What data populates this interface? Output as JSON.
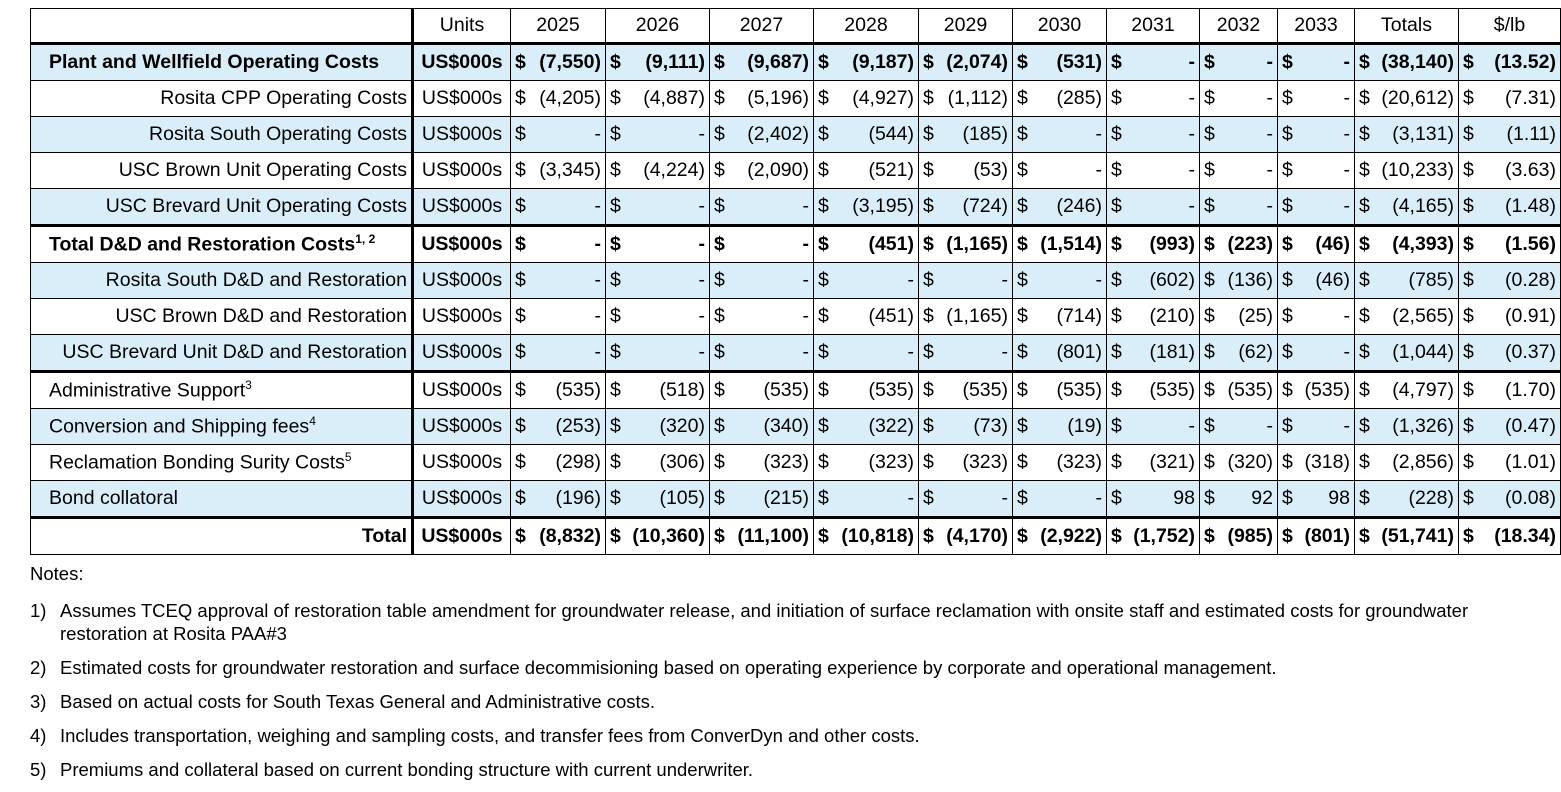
{
  "header": [
    "Units",
    "2025",
    "2026",
    "2027",
    "2028",
    "2029",
    "2030",
    "2031",
    "2032",
    "2033",
    "Totals",
    "$/lb"
  ],
  "rows": [
    {
      "label": "Plant and Wellfield Operating Costs",
      "sup": "",
      "units": "US$000s",
      "align": "left",
      "style": "bold blue thick-top",
      "values": [
        "(7,550)",
        "(9,111)",
        "(9,687)",
        "(9,187)",
        "(2,074)",
        "(531)",
        "-",
        "-",
        "-",
        "(38,140)",
        "(13.52)"
      ]
    },
    {
      "label": "Rosita CPP Operating Costs",
      "sup": "",
      "units": "US$000s",
      "align": "right",
      "style": "",
      "values": [
        "(4,205)",
        "(4,887)",
        "(5,196)",
        "(4,927)",
        "(1,112)",
        "(285)",
        "-",
        "-",
        "-",
        "(20,612)",
        "(7.31)"
      ]
    },
    {
      "label": "Rosita South Operating Costs",
      "sup": "",
      "units": "US$000s",
      "align": "right",
      "style": "blue",
      "values": [
        "-",
        "-",
        "(2,402)",
        "(544)",
        "(185)",
        "-",
        "-",
        "-",
        "-",
        "(3,131)",
        "(1.11)"
      ]
    },
    {
      "label": "USC Brown Unit Operating Costs",
      "sup": "",
      "units": "US$000s",
      "align": "right",
      "style": "",
      "values": [
        "(3,345)",
        "(4,224)",
        "(2,090)",
        "(521)",
        "(53)",
        "-",
        "-",
        "-",
        "-",
        "(10,233)",
        "(3.63)"
      ]
    },
    {
      "label": "USC Brevard Unit Operating Costs",
      "sup": "",
      "units": "US$000s",
      "align": "right",
      "style": "blue",
      "values": [
        "-",
        "-",
        "-",
        "(3,195)",
        "(724)",
        "(246)",
        "-",
        "-",
        "-",
        "(4,165)",
        "(1.48)"
      ]
    },
    {
      "label": "Total D&D and Restoration Costs",
      "sup": "1, 2",
      "units": "US$000s",
      "align": "left",
      "style": "bold thick-top dotted",
      "values": [
        "-",
        "-",
        "-",
        "(451)",
        "(1,165)",
        "(1,514)",
        "(993)",
        "(223)",
        "(46)",
        "(4,393)",
        "(1.56)"
      ]
    },
    {
      "label": "Rosita South D&D and Restoration",
      "sup": "",
      "units": "US$000s",
      "align": "right",
      "style": "blue",
      "values": [
        "-",
        "-",
        "-",
        "-",
        "-",
        "-",
        "(602)",
        "(136)",
        "(46)",
        "(785)",
        "(0.28)"
      ]
    },
    {
      "label": "USC Brown D&D and Restoration",
      "sup": "",
      "units": "US$000s",
      "align": "right",
      "style": "",
      "values": [
        "-",
        "-",
        "-",
        "(451)",
        "(1,165)",
        "(714)",
        "(210)",
        "(25)",
        "-",
        "(2,565)",
        "(0.91)"
      ]
    },
    {
      "label": "USC Brevard Unit D&D and Restoration",
      "sup": "",
      "units": "US$000s",
      "align": "right",
      "style": "blue",
      "values": [
        "-",
        "-",
        "-",
        "-",
        "-",
        "(801)",
        "(181)",
        "(62)",
        "-",
        "(1,044)",
        "(0.37)"
      ]
    },
    {
      "label": "Administrative Support",
      "sup": "3",
      "units": "US$000s",
      "align": "left",
      "style": "thick-top",
      "values": [
        "(535)",
        "(518)",
        "(535)",
        "(535)",
        "(535)",
        "(535)",
        "(535)",
        "(535)",
        "(535)",
        "(4,797)",
        "(1.70)"
      ]
    },
    {
      "label": "Conversion and Shipping fees",
      "sup": "4",
      "units": "US$000s",
      "align": "left",
      "style": "blue",
      "values": [
        "(253)",
        "(320)",
        "(340)",
        "(322)",
        "(73)",
        "(19)",
        "-",
        "-",
        "-",
        "(1,326)",
        "(0.47)"
      ]
    },
    {
      "label": "Reclamation Bonding Surity Costs",
      "sup": "5",
      "units": "US$000s",
      "align": "left",
      "style": "",
      "values": [
        "(298)",
        "(306)",
        "(323)",
        "(323)",
        "(323)",
        "(323)",
        "(321)",
        "(320)",
        "(318)",
        "(2,856)",
        "(1.01)"
      ]
    },
    {
      "label": "Bond collatoral",
      "sup": "",
      "units": "US$000s",
      "align": "left",
      "style": "blue",
      "values": [
        "(196)",
        "(105)",
        "(215)",
        "-",
        "-",
        "-",
        "98",
        "92",
        "98",
        "(228)",
        "(0.08)"
      ]
    },
    {
      "label": "Total",
      "sup": "",
      "units": "US$000s",
      "align": "right",
      "style": "bold thick-top total-row",
      "values": [
        "(8,832)",
        "(10,360)",
        "(11,100)",
        "(10,818)",
        "(4,170)",
        "(2,922)",
        "(1,752)",
        "(985)",
        "(801)",
        "(51,741)",
        "(18.34)"
      ]
    }
  ],
  "currency_symbol": "$",
  "notes": {
    "heading": "Notes:",
    "items": [
      {
        "num": "1)",
        "text": "Assumes TCEQ approval of restoration table amendment for groundwater release, and initiation of surface reclamation with onsite staff and estimated costs for groundwater restoration at Rosita PAA#3"
      },
      {
        "num": "2)",
        "text": "Estimated costs for groundwater restoration and surface decommisioning based on operating experience by corporate and operational management."
      },
      {
        "num": "3)",
        "text": "Based on actual costs for South Texas General and Administrative costs."
      },
      {
        "num": "4)",
        "text": "Includes transportation, weighing and sampling costs, and transfer fees from ConverDyn and other costs."
      },
      {
        "num": "5)",
        "text": "Premiums and collateral based on current bonding structure with current underwriter."
      }
    ]
  },
  "colors": {
    "highlight_row": "#daeef9",
    "text": "#000000"
  }
}
